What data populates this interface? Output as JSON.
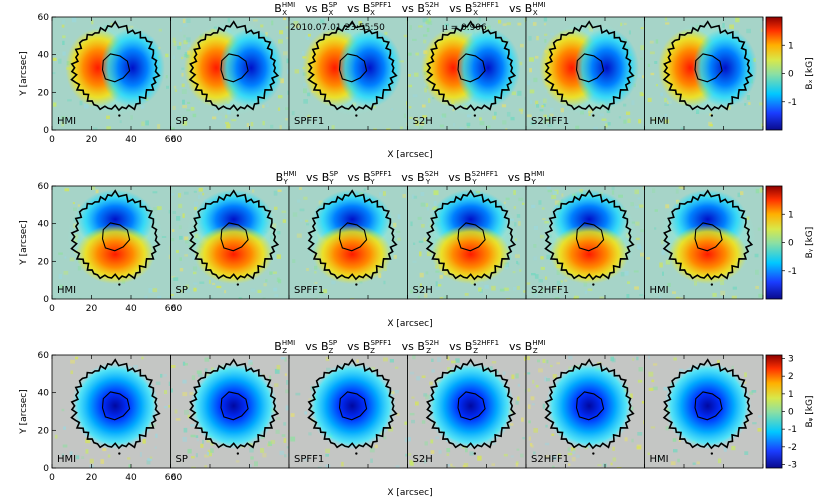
{
  "chart_data": {
    "type": "heatmap",
    "date_text": "2010.07.01  23:55:50",
    "mu_text": "μ = 0.906",
    "panel_labels": [
      "HMI",
      "SP",
      "SPFF1",
      "S2H",
      "S2HFF1",
      "HMI"
    ],
    "rows": [
      {
        "component": "X",
        "title_parts": [
          {
            "base": "B",
            "sub": "X",
            "sup": "HMI"
          },
          {
            "base": "B",
            "sub": "X",
            "sup": "SP"
          },
          {
            "base": "B",
            "sub": "X",
            "sup": "SPFF1"
          },
          {
            "base": "B",
            "sub": "X",
            "sup": "S2H"
          },
          {
            "base": "B",
            "sub": "X",
            "sup": "S2HFF1"
          },
          {
            "base": "B",
            "sub": "X",
            "sup": "HMI"
          }
        ],
        "colorbar_label": "Bₓ [kG]",
        "colorbar_ticks": [
          1,
          0,
          -1
        ],
        "clim": [
          -2,
          2
        ],
        "pattern": "dipole-x"
      },
      {
        "component": "Y",
        "title_parts": [
          {
            "base": "B",
            "sub": "Y",
            "sup": "HMI"
          },
          {
            "base": "B",
            "sub": "Y",
            "sup": "SP"
          },
          {
            "base": "B",
            "sub": "Y",
            "sup": "SPFF1"
          },
          {
            "base": "B",
            "sub": "Y",
            "sup": "S2H"
          },
          {
            "base": "B",
            "sub": "Y",
            "sup": "S2HFF1"
          },
          {
            "base": "B",
            "sub": "Y",
            "sup": "HMI"
          }
        ],
        "colorbar_label": "Bᵧ [kG]",
        "colorbar_ticks": [
          1,
          0,
          -1
        ],
        "clim": [
          -2,
          2
        ],
        "pattern": "dipole-y"
      },
      {
        "component": "Z",
        "title_parts": [
          {
            "base": "B",
            "sub": "Z",
            "sup": "HMI"
          },
          {
            "base": "B",
            "sub": "Z",
            "sup": "SP"
          },
          {
            "base": "B",
            "sub": "Z",
            "sup": "SPFF1"
          },
          {
            "base": "B",
            "sub": "Z",
            "sup": "S2H"
          },
          {
            "base": "B",
            "sub": "Z",
            "sup": "S2HFF1"
          },
          {
            "base": "B",
            "sub": "Z",
            "sup": "HMI"
          }
        ],
        "colorbar_label": "Bᵩ [kG]",
        "colorbar_ticks": [
          3,
          2,
          1,
          0,
          -1,
          -2,
          -3
        ],
        "clim": [
          -3.2,
          3.2
        ],
        "pattern": "monopole"
      }
    ],
    "xlabel": "X [arcsec]",
    "ylabel": "Y [arcsec]",
    "xlim": [
      0,
      60
    ],
    "ylim": [
      0,
      60
    ],
    "x_ticks": [
      0,
      20,
      40,
      60
    ],
    "y_ticks": [
      0,
      20,
      40,
      60
    ],
    "x_tick_labels_extra": [
      "60"
    ],
    "spot_center": [
      32,
      33
    ],
    "umbra_radius": 7,
    "penumbra_radius": 21,
    "colormap": "blue-cyan-green-yellow-red",
    "background_color": "#bfbfbf"
  }
}
